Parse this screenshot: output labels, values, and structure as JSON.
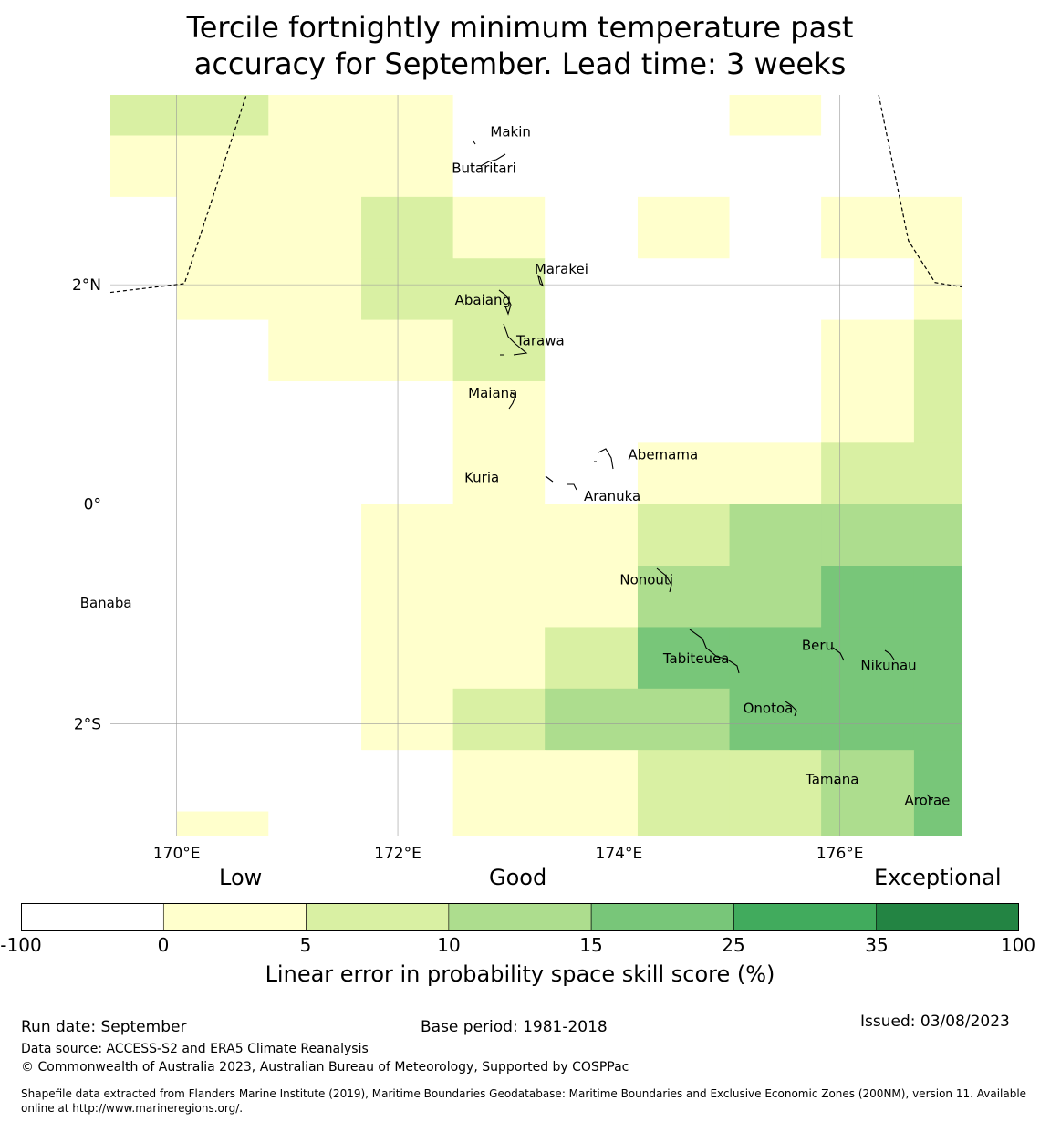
{
  "title": {
    "line1": "Tercile fortnightly minimum temperature past",
    "line2": "accuracy for September. Lead time: 3 weeks"
  },
  "map": {
    "lon_range": [
      169.4,
      177.1
    ],
    "lat_range": [
      -3.02,
      3.73
    ],
    "lon_ticks": [
      {
        "value": 170,
        "label": "170°E"
      },
      {
        "value": 172,
        "label": "172°E"
      },
      {
        "value": 174,
        "label": "174°E"
      },
      {
        "value": 176,
        "label": "176°E"
      }
    ],
    "lat_ticks": [
      {
        "value": 2,
        "label": "2°N"
      },
      {
        "value": 0,
        "label": "0°"
      },
      {
        "value": -2,
        "label": "2°S"
      }
    ],
    "grid_lon_edges": [
      169.4,
      170.0,
      170.83,
      171.67,
      172.5,
      173.33,
      174.17,
      175.0,
      175.83,
      176.67,
      177.1
    ],
    "grid_lat_edges": [
      3.73,
      3.36,
      2.8,
      2.24,
      1.68,
      1.12,
      0.56,
      0.0,
      -0.56,
      -1.12,
      -1.68,
      -2.24,
      -2.8,
      -3.02
    ],
    "grid_values": [
      [
        2,
        2,
        1,
        1,
        0,
        0,
        0,
        1,
        0,
        0
      ],
      [
        1,
        1,
        1,
        1,
        0,
        0,
        0,
        0,
        0,
        0
      ],
      [
        0,
        1,
        1,
        2,
        1,
        0,
        1,
        0,
        1,
        1
      ],
      [
        0,
        1,
        1,
        2,
        2,
        0,
        0,
        0,
        0,
        1
      ],
      [
        0,
        0,
        1,
        1,
        2,
        0,
        0,
        0,
        1,
        2
      ],
      [
        0,
        0,
        0,
        0,
        1,
        0,
        0,
        0,
        1,
        2
      ],
      [
        0,
        0,
        0,
        0,
        1,
        0,
        1,
        1,
        2,
        2
      ],
      [
        0,
        0,
        0,
        1,
        1,
        1,
        2,
        3,
        3,
        3
      ],
      [
        0,
        0,
        0,
        1,
        1,
        1,
        3,
        3,
        4,
        4
      ],
      [
        0,
        0,
        0,
        1,
        1,
        2,
        4,
        4,
        4,
        4
      ],
      [
        0,
        0,
        0,
        1,
        2,
        3,
        3,
        4,
        4,
        4
      ],
      [
        0,
        0,
        0,
        0,
        1,
        1,
        2,
        2,
        3,
        4
      ],
      [
        0,
        1,
        0,
        0,
        1,
        1,
        2,
        2,
        3,
        4
      ]
    ],
    "islands": [
      {
        "name": "Makin",
        "lon": 173.02,
        "lat": 3.35
      },
      {
        "name": "Butaritari",
        "lon": 172.78,
        "lat": 3.02
      },
      {
        "name": "Marakei",
        "lon": 173.48,
        "lat": 2.1
      },
      {
        "name": "Abaiang",
        "lon": 172.77,
        "lat": 1.82
      },
      {
        "name": "Tarawa",
        "lon": 173.29,
        "lat": 1.45
      },
      {
        "name": "Maiana",
        "lon": 172.86,
        "lat": 0.97
      },
      {
        "name": "Abemama",
        "lon": 174.4,
        "lat": 0.41
      },
      {
        "name": "Kuria",
        "lon": 172.76,
        "lat": 0.2
      },
      {
        "name": "Aranuka",
        "lon": 173.94,
        "lat": 0.03
      },
      {
        "name": "Nonouti",
        "lon": 174.25,
        "lat": -0.73
      },
      {
        "name": "Banaba",
        "lon": 169.36,
        "lat": -0.94
      },
      {
        "name": "Beru",
        "lon": 175.8,
        "lat": -1.33
      },
      {
        "name": "Tabiteuea",
        "lon": 174.7,
        "lat": -1.45
      },
      {
        "name": "Nikunau",
        "lon": 176.44,
        "lat": -1.51
      },
      {
        "name": "Onotoa",
        "lon": 175.35,
        "lat": -1.9
      },
      {
        "name": "Tamana",
        "lon": 175.93,
        "lat": -2.55
      },
      {
        "name": "Arorae",
        "lon": 176.79,
        "lat": -2.74
      }
    ]
  },
  "colorbar": {
    "categories": [
      "Low",
      "Good",
      "Exceptional"
    ],
    "ticks": [
      "-100",
      "0",
      "5",
      "10",
      "15",
      "25",
      "35",
      "100"
    ],
    "colors": [
      "#ffffff",
      "#ffffcc",
      "#d9f0a3",
      "#addd8e",
      "#78c679",
      "#41ab5d",
      "#238443"
    ],
    "label": "Linear error in probability space skill score (%)"
  },
  "footer": {
    "run_date": "Run date: September",
    "base_period": "Base period: 1981-2018",
    "issued": "Issued: 03/08/2023",
    "data_source": "Data source: ACCESS-S2 and ERA5 Climate Reanalysis",
    "copyright": "© Commonwealth of Australia 2023, Australian Bureau of Meteorology, Supported by COSPPac",
    "shapefile": "Shapefile data extracted from Flanders Marine Institute (2019), Maritime Boundaries Geodatabase: Maritime Boundaries and Exclusive Economic Zones (200NM), version 11. Available online at http://www.marineregions.org/."
  }
}
